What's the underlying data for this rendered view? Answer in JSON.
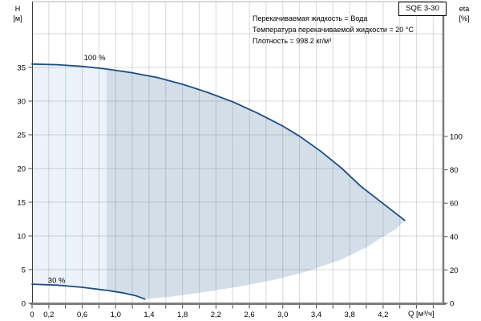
{
  "pump_badge": "SQE 3-30",
  "annotations": {
    "line1": "Перекачиваемая жидкость = Вода",
    "line2": "Температура перекачиваемой жидкости = 20 °C",
    "line3": "Плотность = 998.2 кг/м³"
  },
  "chart_data": {
    "type": "area",
    "title": "SQE 3-30",
    "description": "Pump performance envelope between 30% and 100% speed curves, head H versus flow Q",
    "x_axis": {
      "label": "Q [м³/ч]",
      "min": 0,
      "max": 4.92,
      "minor_tick_step": 0.2,
      "tick_label_values": [
        0,
        0.2,
        0.6,
        1.0,
        1.4,
        1.8,
        2.2,
        2.6,
        3.0,
        3.4,
        3.8,
        4.2
      ],
      "tick_labels": [
        "0",
        "0,2",
        "0,6",
        "1,0",
        "1,4",
        "1,8",
        "2,2",
        "2,6",
        "3,0",
        "3,4",
        "3,8",
        "4,2"
      ],
      "grid": true
    },
    "y_axis_left": {
      "label": "H [м]",
      "label_symbol": "H",
      "label_unit": "[м]",
      "min": 0,
      "max": 44.8,
      "grid_step": 5,
      "tick_label_values": [
        0,
        5,
        10,
        15,
        20,
        25,
        30,
        35
      ],
      "grid": true
    },
    "y_axis_right": {
      "label": "eta [%]",
      "label_symbol": "eta",
      "label_unit": "[%]",
      "min": 0,
      "max": 100,
      "tick_label_values": [
        0,
        20,
        40,
        60,
        80,
        100
      ]
    },
    "series": [
      {
        "name": "speed-100-percent-curve",
        "label": "100 %",
        "label_pos": {
          "q": 0.62,
          "h": 36.1
        },
        "stroked": true,
        "points": [
          [
            0,
            35.5
          ],
          [
            0.3,
            35.4
          ],
          [
            0.6,
            35.15
          ],
          [
            0.9,
            34.75
          ],
          [
            1.2,
            34.2
          ],
          [
            1.5,
            33.5
          ],
          [
            1.8,
            32.5
          ],
          [
            2.1,
            31.3
          ],
          [
            2.4,
            29.9
          ],
          [
            2.7,
            28.2
          ],
          [
            3.0,
            26.3
          ],
          [
            3.2,
            24.8
          ],
          [
            3.45,
            22.6
          ],
          [
            3.7,
            20.1
          ],
          [
            3.93,
            17.4
          ],
          [
            4.2,
            14.8
          ],
          [
            4.46,
            12.3
          ]
        ]
      },
      {
        "name": "speed-30-percent-curve",
        "label": "30 %",
        "label_pos": {
          "q": 0.19,
          "h": 3.05
        },
        "stroked": true,
        "points": [
          [
            0,
            2.85
          ],
          [
            0.3,
            2.7
          ],
          [
            0.6,
            2.38
          ],
          [
            0.9,
            1.92
          ],
          [
            1.1,
            1.52
          ],
          [
            1.25,
            1.1
          ],
          [
            1.35,
            0.63
          ]
        ]
      },
      {
        "name": "max-flow-boundary",
        "label": "",
        "label_pos": null,
        "stroked": false,
        "points": [
          [
            1.35,
            0.63
          ],
          [
            1.7,
            1.05
          ],
          [
            2.1,
            1.75
          ],
          [
            2.5,
            2.55
          ],
          [
            2.9,
            3.5
          ],
          [
            3.3,
            4.8
          ],
          [
            3.7,
            6.5
          ],
          [
            4.0,
            8.3
          ],
          [
            4.2,
            9.9
          ],
          [
            4.35,
            11.0
          ],
          [
            4.46,
            12.3
          ]
        ]
      }
    ],
    "operating_range_split_q": 0.89,
    "colors": {
      "curve": "#1e4e7e",
      "region_light": "#ecf2fa",
      "region_dark": "#d3dee9",
      "grid": "rgba(105,115,130,0.28)",
      "plot_border_top": "#b0b4ba",
      "axis_left": "#3a3a3a",
      "axis_bottom_right": "#7d7d7d",
      "tick": "#4a4a4a",
      "text": "#000000"
    }
  }
}
